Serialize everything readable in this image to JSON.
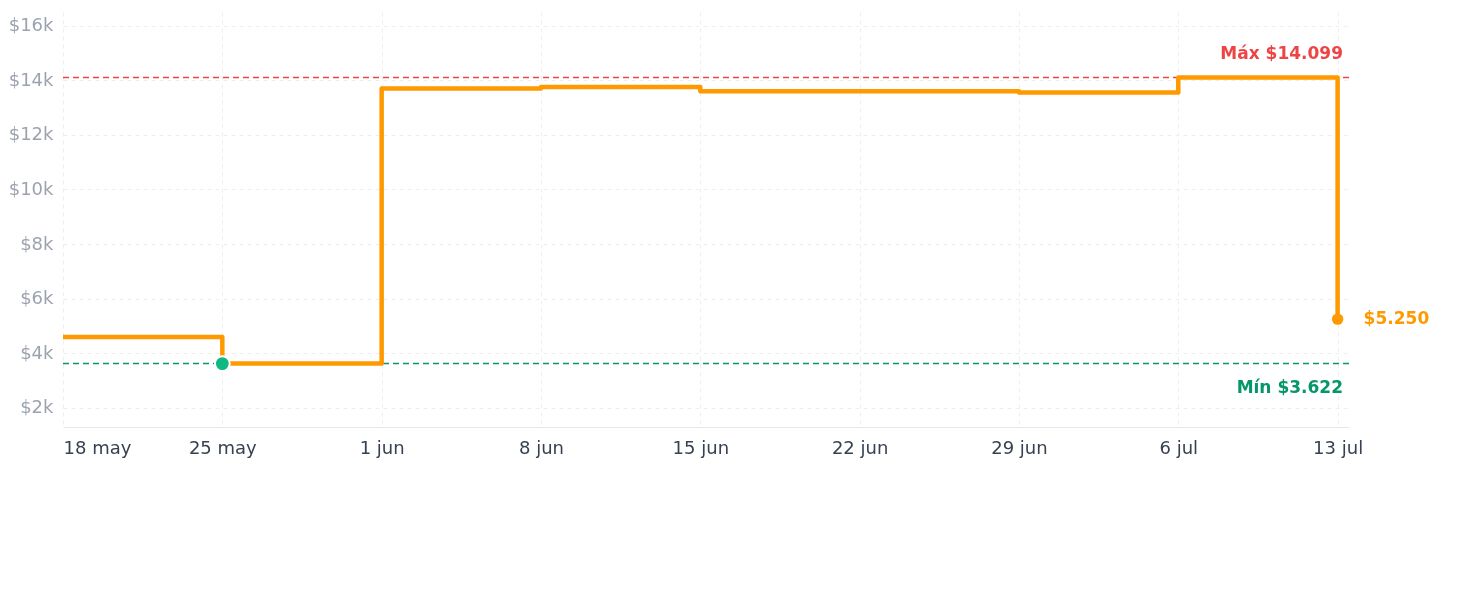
{
  "chart_data": {
    "type": "step",
    "x": [
      "--05-18",
      "--05-25",
      "--06-01",
      "--06-08",
      "--06-15",
      "--06-29",
      "--07-06",
      "--07-13"
    ],
    "series": [
      {
        "color": "#ff9900",
        "values": [
          4600,
          3622,
          13700,
          13750,
          13600,
          13550,
          14099,
          5250
        ]
      },
      {
        "type": "scatter",
        "color": "#10b981",
        "marker": "circle",
        "x": [
          "--05-25"
        ],
        "values": [
          3622
        ]
      },
      {
        "type": "scatter",
        "color": "#ff9900",
        "marker": "circle",
        "x": [
          "--07-13"
        ],
        "values": [
          5250
        ],
        "value_labels": [
          "$5.250"
        ]
      }
    ],
    "xlim": [
      "--05-18",
      "--07-13T12:00"
    ],
    "xticks": [
      {
        "value": "--05-18",
        "label": "18 may"
      },
      {
        "value": "--05-25",
        "label": "25 may"
      },
      {
        "value": "--06-01",
        "label": "1 jun"
      },
      {
        "value": "--06-08",
        "label": "8 jun"
      },
      {
        "value": "--06-15",
        "label": "15 jun"
      },
      {
        "value": "--06-22",
        "label": "22 jun"
      },
      {
        "value": "--06-29",
        "label": "29 jun"
      },
      {
        "value": "--07-06",
        "label": "6 jul"
      },
      {
        "value": "--07-13",
        "label": "13 jul"
      }
    ],
    "ylim": [
      1300,
      16500
    ],
    "yticks": [
      {
        "value": 2000,
        "label": "$2k"
      },
      {
        "value": 4000,
        "label": "$4k"
      },
      {
        "value": 6000,
        "label": "$6k"
      },
      {
        "value": 8000,
        "label": "$8k"
      },
      {
        "value": 10000,
        "label": "$10k"
      },
      {
        "value": 12000,
        "label": "$12k"
      },
      {
        "value": 14000,
        "label": "$14k"
      },
      {
        "value": 16000,
        "label": "$16k"
      }
    ],
    "ref_lines": [
      {
        "axis": "y",
        "value": 14099,
        "label": "Máx $14.099",
        "color": "#ef4444",
        "line_style": "dashed"
      },
      {
        "axis": "y",
        "value": 3622,
        "label": "Mín $3.622",
        "color": "#059669",
        "line_style": "dashed"
      }
    ],
    "grid": true,
    "line_style": "solid"
  }
}
